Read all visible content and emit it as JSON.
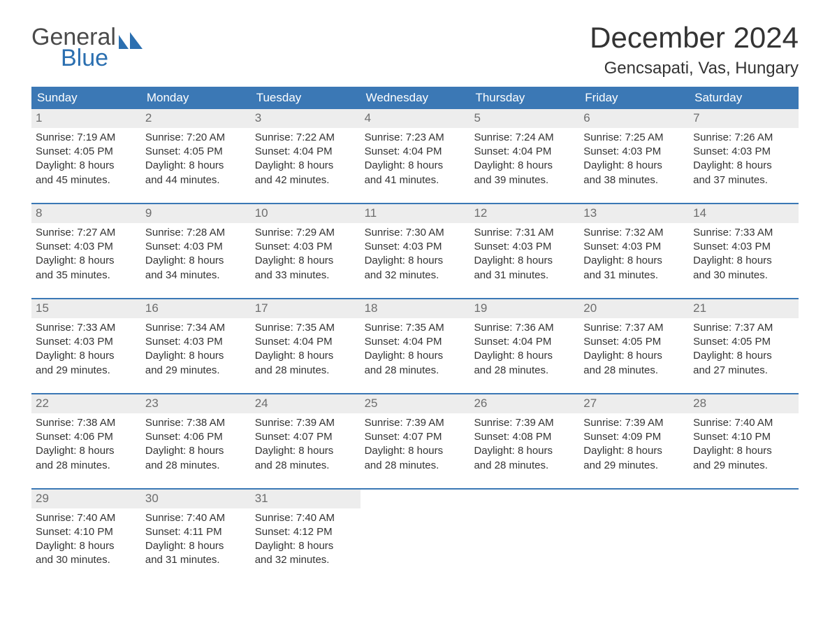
{
  "logo": {
    "text1": "General",
    "text2": "Blue",
    "shape_color": "#2b6fb0",
    "text1_color": "#4a4a4a"
  },
  "title": "December 2024",
  "location": "Gencsapati, Vas, Hungary",
  "colors": {
    "header_bg": "#3b78b5",
    "header_text": "#ffffff",
    "week_divider": "#3b78b5",
    "daynum_bg": "#ededed",
    "daynum_text": "#6d6d6d",
    "body_text": "#333333",
    "background": "#ffffff"
  },
  "typography": {
    "title_fontsize": 42,
    "location_fontsize": 24,
    "header_fontsize": 17,
    "daynum_fontsize": 17,
    "body_fontsize": 15,
    "font_family": "Arial"
  },
  "day_headers": [
    "Sunday",
    "Monday",
    "Tuesday",
    "Wednesday",
    "Thursday",
    "Friday",
    "Saturday"
  ],
  "weeks": [
    [
      {
        "n": "1",
        "sunrise": "Sunrise: 7:19 AM",
        "sunset": "Sunset: 4:05 PM",
        "d1": "Daylight: 8 hours",
        "d2": "and 45 minutes."
      },
      {
        "n": "2",
        "sunrise": "Sunrise: 7:20 AM",
        "sunset": "Sunset: 4:05 PM",
        "d1": "Daylight: 8 hours",
        "d2": "and 44 minutes."
      },
      {
        "n": "3",
        "sunrise": "Sunrise: 7:22 AM",
        "sunset": "Sunset: 4:04 PM",
        "d1": "Daylight: 8 hours",
        "d2": "and 42 minutes."
      },
      {
        "n": "4",
        "sunrise": "Sunrise: 7:23 AM",
        "sunset": "Sunset: 4:04 PM",
        "d1": "Daylight: 8 hours",
        "d2": "and 41 minutes."
      },
      {
        "n": "5",
        "sunrise": "Sunrise: 7:24 AM",
        "sunset": "Sunset: 4:04 PM",
        "d1": "Daylight: 8 hours",
        "d2": "and 39 minutes."
      },
      {
        "n": "6",
        "sunrise": "Sunrise: 7:25 AM",
        "sunset": "Sunset: 4:03 PM",
        "d1": "Daylight: 8 hours",
        "d2": "and 38 minutes."
      },
      {
        "n": "7",
        "sunrise": "Sunrise: 7:26 AM",
        "sunset": "Sunset: 4:03 PM",
        "d1": "Daylight: 8 hours",
        "d2": "and 37 minutes."
      }
    ],
    [
      {
        "n": "8",
        "sunrise": "Sunrise: 7:27 AM",
        "sunset": "Sunset: 4:03 PM",
        "d1": "Daylight: 8 hours",
        "d2": "and 35 minutes."
      },
      {
        "n": "9",
        "sunrise": "Sunrise: 7:28 AM",
        "sunset": "Sunset: 4:03 PM",
        "d1": "Daylight: 8 hours",
        "d2": "and 34 minutes."
      },
      {
        "n": "10",
        "sunrise": "Sunrise: 7:29 AM",
        "sunset": "Sunset: 4:03 PM",
        "d1": "Daylight: 8 hours",
        "d2": "and 33 minutes."
      },
      {
        "n": "11",
        "sunrise": "Sunrise: 7:30 AM",
        "sunset": "Sunset: 4:03 PM",
        "d1": "Daylight: 8 hours",
        "d2": "and 32 minutes."
      },
      {
        "n": "12",
        "sunrise": "Sunrise: 7:31 AM",
        "sunset": "Sunset: 4:03 PM",
        "d1": "Daylight: 8 hours",
        "d2": "and 31 minutes."
      },
      {
        "n": "13",
        "sunrise": "Sunrise: 7:32 AM",
        "sunset": "Sunset: 4:03 PM",
        "d1": "Daylight: 8 hours",
        "d2": "and 31 minutes."
      },
      {
        "n": "14",
        "sunrise": "Sunrise: 7:33 AM",
        "sunset": "Sunset: 4:03 PM",
        "d1": "Daylight: 8 hours",
        "d2": "and 30 minutes."
      }
    ],
    [
      {
        "n": "15",
        "sunrise": "Sunrise: 7:33 AM",
        "sunset": "Sunset: 4:03 PM",
        "d1": "Daylight: 8 hours",
        "d2": "and 29 minutes."
      },
      {
        "n": "16",
        "sunrise": "Sunrise: 7:34 AM",
        "sunset": "Sunset: 4:03 PM",
        "d1": "Daylight: 8 hours",
        "d2": "and 29 minutes."
      },
      {
        "n": "17",
        "sunrise": "Sunrise: 7:35 AM",
        "sunset": "Sunset: 4:04 PM",
        "d1": "Daylight: 8 hours",
        "d2": "and 28 minutes."
      },
      {
        "n": "18",
        "sunrise": "Sunrise: 7:35 AM",
        "sunset": "Sunset: 4:04 PM",
        "d1": "Daylight: 8 hours",
        "d2": "and 28 minutes."
      },
      {
        "n": "19",
        "sunrise": "Sunrise: 7:36 AM",
        "sunset": "Sunset: 4:04 PM",
        "d1": "Daylight: 8 hours",
        "d2": "and 28 minutes."
      },
      {
        "n": "20",
        "sunrise": "Sunrise: 7:37 AM",
        "sunset": "Sunset: 4:05 PM",
        "d1": "Daylight: 8 hours",
        "d2": "and 28 minutes."
      },
      {
        "n": "21",
        "sunrise": "Sunrise: 7:37 AM",
        "sunset": "Sunset: 4:05 PM",
        "d1": "Daylight: 8 hours",
        "d2": "and 27 minutes."
      }
    ],
    [
      {
        "n": "22",
        "sunrise": "Sunrise: 7:38 AM",
        "sunset": "Sunset: 4:06 PM",
        "d1": "Daylight: 8 hours",
        "d2": "and 28 minutes."
      },
      {
        "n": "23",
        "sunrise": "Sunrise: 7:38 AM",
        "sunset": "Sunset: 4:06 PM",
        "d1": "Daylight: 8 hours",
        "d2": "and 28 minutes."
      },
      {
        "n": "24",
        "sunrise": "Sunrise: 7:39 AM",
        "sunset": "Sunset: 4:07 PM",
        "d1": "Daylight: 8 hours",
        "d2": "and 28 minutes."
      },
      {
        "n": "25",
        "sunrise": "Sunrise: 7:39 AM",
        "sunset": "Sunset: 4:07 PM",
        "d1": "Daylight: 8 hours",
        "d2": "and 28 minutes."
      },
      {
        "n": "26",
        "sunrise": "Sunrise: 7:39 AM",
        "sunset": "Sunset: 4:08 PM",
        "d1": "Daylight: 8 hours",
        "d2": "and 28 minutes."
      },
      {
        "n": "27",
        "sunrise": "Sunrise: 7:39 AM",
        "sunset": "Sunset: 4:09 PM",
        "d1": "Daylight: 8 hours",
        "d2": "and 29 minutes."
      },
      {
        "n": "28",
        "sunrise": "Sunrise: 7:40 AM",
        "sunset": "Sunset: 4:10 PM",
        "d1": "Daylight: 8 hours",
        "d2": "and 29 minutes."
      }
    ],
    [
      {
        "n": "29",
        "sunrise": "Sunrise: 7:40 AM",
        "sunset": "Sunset: 4:10 PM",
        "d1": "Daylight: 8 hours",
        "d2": "and 30 minutes."
      },
      {
        "n": "30",
        "sunrise": "Sunrise: 7:40 AM",
        "sunset": "Sunset: 4:11 PM",
        "d1": "Daylight: 8 hours",
        "d2": "and 31 minutes."
      },
      {
        "n": "31",
        "sunrise": "Sunrise: 7:40 AM",
        "sunset": "Sunset: 4:12 PM",
        "d1": "Daylight: 8 hours",
        "d2": "and 32 minutes."
      },
      {
        "empty": true
      },
      {
        "empty": true
      },
      {
        "empty": true
      },
      {
        "empty": true
      }
    ]
  ]
}
